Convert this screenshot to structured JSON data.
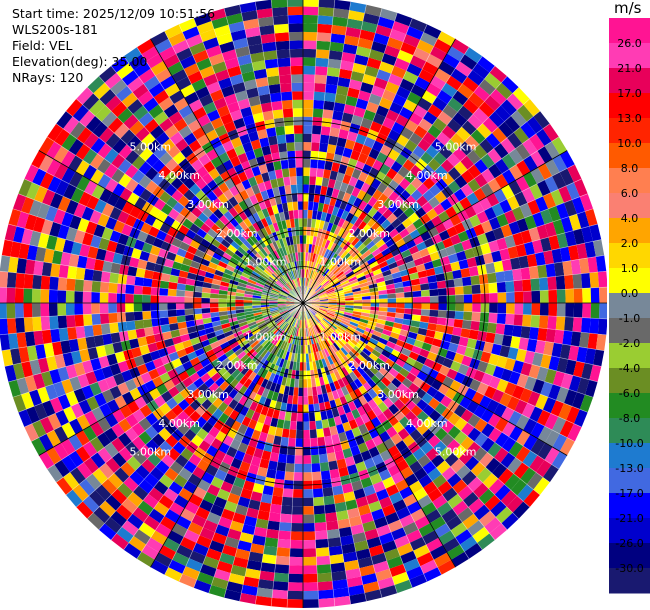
{
  "info": {
    "start_time": "Start time: 2025/12/09 10:51:56",
    "instrument": "WLS200s-181",
    "field": "Field: VEL",
    "elevation": "Elevation(deg): 35.00",
    "nrays": "NRays: 120"
  },
  "chart_data": {
    "type": "heatmap",
    "subtype": "polar-ppi",
    "field": "VEL",
    "rays": 120,
    "max_range_km": 5.0,
    "range_rings_km": [
      1.0,
      2.0,
      3.0,
      4.0,
      5.0
    ],
    "ring_label_suffix": "km",
    "ring_label_values": [
      "1.00",
      "2.00",
      "3.00",
      "4.00",
      "5.00"
    ],
    "center_labels": [
      "2.00km",
      "2.00km"
    ],
    "colorbar": {
      "unit": "m/s",
      "ticks": [
        "26.0",
        "21.0",
        "17.0",
        "13.0",
        "10.0",
        "8.0",
        "6.0",
        "4.0",
        "2.0",
        "1.0",
        "0.0",
        "-1.0",
        "-2.0",
        "-4.0",
        "-6.0",
        "-8.0",
        "-10.0",
        "-13.0",
        "-17.0",
        "-21.0",
        "-26.0",
        "-30.0"
      ],
      "colors": [
        "#ff1493",
        "#ff3cb4",
        "#e8005a",
        "#ff0000",
        "#ff2400",
        "#ff5a00",
        "#ff7f50",
        "#fa8072",
        "#ffa500",
        "#ffd700",
        "#ffff00",
        "#778899",
        "#696969",
        "#9acd32",
        "#6b8e23",
        "#228b22",
        "#2e8b57",
        "#1e7bd0",
        "#4169e1",
        "#0000ff",
        "#0000cd",
        "#000080",
        "#191970"
      ]
    }
  }
}
